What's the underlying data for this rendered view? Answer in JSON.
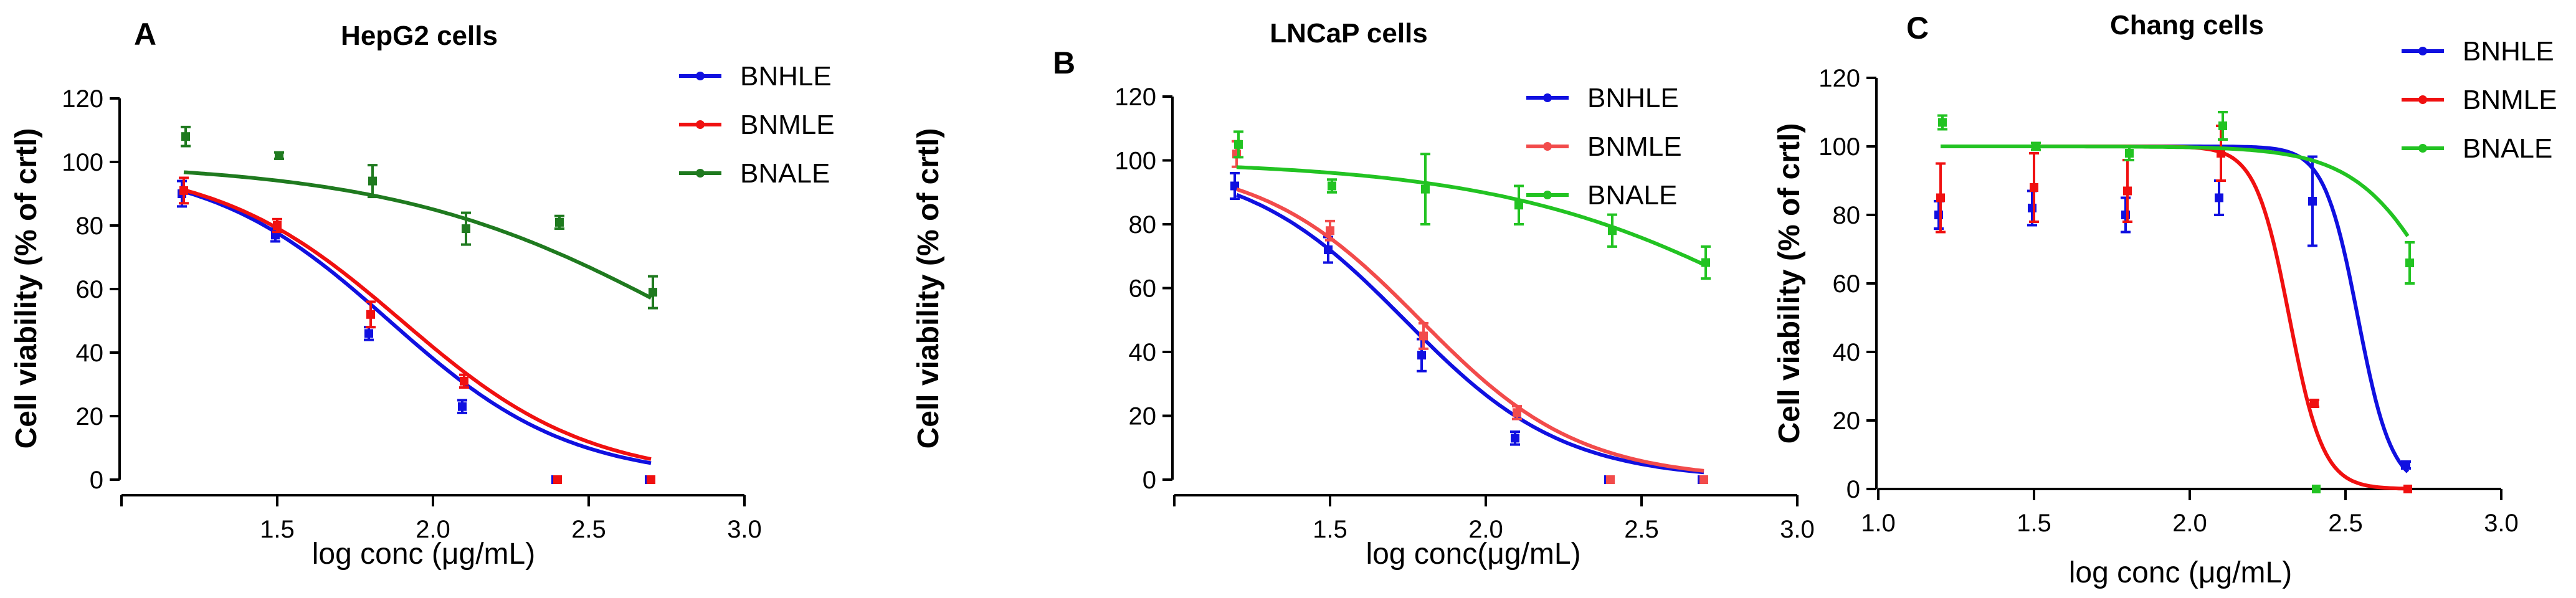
{
  "chart_data": [
    {
      "type": "scatter",
      "panel": "A",
      "title": "HepG2 cells",
      "xlabel": "log conc (μg/mL)",
      "ylabel": "Cell viability (% of crtl)",
      "xlim": [
        1.0,
        3.0
      ],
      "ylim": [
        0,
        120
      ],
      "xticks": [
        "1.5",
        "2.0",
        "2.5",
        "3.0"
      ],
      "yticks": [
        "0",
        "20",
        "40",
        "60",
        "80",
        "100",
        "120"
      ],
      "legend": "top-right",
      "series": [
        {
          "name": "BNHLE",
          "color": "#1010e0",
          "x": [
            1.2,
            1.5,
            1.8,
            2.1,
            2.4,
            2.7
          ],
          "y": [
            90,
            77,
            46,
            23,
            0,
            0
          ],
          "err": [
            4,
            2,
            2,
            2,
            0,
            0
          ],
          "fit": {
            "top": 100,
            "bottom": 0,
            "logec50": 1.86,
            "hill": -1.5
          }
        },
        {
          "name": "BNMLE",
          "color": "#f01010",
          "x": [
            1.2,
            1.5,
            1.8,
            2.1,
            2.4,
            2.7
          ],
          "y": [
            91,
            80,
            52,
            31,
            0,
            0
          ],
          "err": [
            4,
            2,
            4,
            2,
            0,
            0
          ],
          "fit": {
            "top": 100,
            "bottom": 0,
            "logec50": 1.9,
            "hill": -1.45
          }
        },
        {
          "name": "BNALE",
          "color": "#1f7a1f",
          "x": [
            1.2,
            1.5,
            1.8,
            2.1,
            2.4,
            2.7
          ],
          "y": [
            108,
            102,
            94,
            79,
            81,
            59
          ],
          "err": [
            3,
            1,
            5,
            5,
            2,
            5
          ],
          "fit": {
            "top": 100,
            "bottom": 0,
            "logec50": 2.84,
            "hill": -0.9
          }
        }
      ]
    },
    {
      "type": "scatter",
      "panel": "B",
      "title": "LNCaP cells",
      "xlabel": "log conc(μg/mL)",
      "ylabel": "Cell viability (% of crtl)",
      "xlim": [
        1.0,
        3.0
      ],
      "ylim": [
        0,
        120
      ],
      "xticks": [
        "1.5",
        "2.0",
        "2.5",
        "3.0"
      ],
      "yticks": [
        "0",
        "20",
        "40",
        "60",
        "80",
        "100",
        "120"
      ],
      "legend": "top-right",
      "series": [
        {
          "name": "BNHLE",
          "color": "#1010e0",
          "x": [
            1.2,
            1.5,
            1.8,
            2.1,
            2.4,
            2.7
          ],
          "y": [
            92,
            72,
            39,
            13,
            0,
            0
          ],
          "err": [
            4,
            4,
            5,
            2,
            0,
            0
          ],
          "fit": {
            "top": 100,
            "bottom": 0,
            "logec50": 1.74,
            "hill": -1.7
          }
        },
        {
          "name": "BNMLE",
          "color": "#f24b4b",
          "x": [
            1.2,
            1.5,
            1.8,
            2.1,
            2.4,
            2.7
          ],
          "y": [
            102,
            78,
            45,
            21,
            0,
            0
          ],
          "err": [
            4,
            3,
            4,
            2,
            0,
            0
          ],
          "fit": {
            "top": 100,
            "bottom": 0,
            "logec50": 1.79,
            "hill": -1.7
          }
        },
        {
          "name": "BNALE",
          "color": "#22c322",
          "x": [
            1.2,
            1.5,
            1.8,
            2.1,
            2.4,
            2.7
          ],
          "y": [
            105,
            92,
            91,
            86,
            78,
            68
          ],
          "err": [
            4,
            2,
            11,
            6,
            5,
            5
          ],
          "fit": {
            "top": 100,
            "bottom": 0,
            "logec50": 3.05,
            "hill": -0.9
          }
        }
      ]
    },
    {
      "type": "scatter",
      "panel": "C",
      "title": "Chang cells",
      "xlabel": "log conc (μg/mL)",
      "ylabel": "Cell viability (% of crtl)",
      "xlim": [
        1.0,
        3.0
      ],
      "ylim": [
        0,
        120
      ],
      "xticks": [
        "1.0",
        "1.5",
        "2.0",
        "2.5",
        "3.0"
      ],
      "yticks": [
        "0",
        "20",
        "40",
        "60",
        "80",
        "100",
        "120"
      ],
      "legend": "top-right",
      "series": [
        {
          "name": "BNHLE",
          "color": "#1010e0",
          "x": [
            1.2,
            1.5,
            1.8,
            2.1,
            2.4,
            2.7
          ],
          "y": [
            80,
            82,
            80,
            85,
            84,
            7
          ],
          "err": [
            4,
            5,
            5,
            5,
            13,
            1
          ],
          "fit": {
            "top": 100,
            "bottom": 0,
            "logec50": 2.54,
            "hill": -8
          }
        },
        {
          "name": "BNMLE",
          "color": "#f01010",
          "x": [
            1.2,
            1.5,
            1.8,
            2.1,
            2.4,
            2.7
          ],
          "y": [
            85,
            88,
            87,
            98,
            25,
            0
          ],
          "err": [
            10,
            10,
            9,
            8,
            1,
            0
          ],
          "fit": {
            "top": 100,
            "bottom": 0,
            "logec50": 2.32,
            "hill": -8
          }
        },
        {
          "name": "BNALE",
          "color": "#22c322",
          "x": [
            1.2,
            1.5,
            1.8,
            2.1,
            2.4,
            2.7
          ],
          "y": [
            107,
            100,
            98,
            106,
            0,
            66
          ],
          "err": [
            2,
            1,
            2,
            4,
            0,
            6
          ],
          "fit": {
            "top": 100,
            "bottom": 0,
            "logec50": 2.85,
            "hill": -3
          }
        }
      ]
    }
  ]
}
